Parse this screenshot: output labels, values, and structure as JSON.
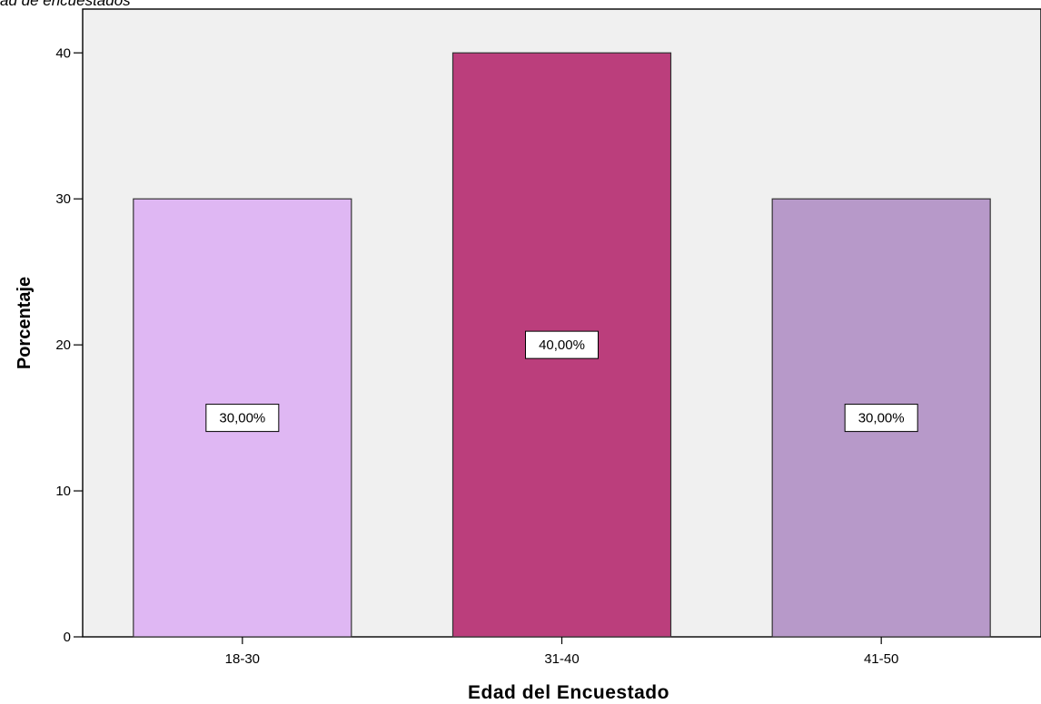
{
  "caption": "ad de encuestados",
  "chart_data": {
    "type": "bar",
    "xlabel": "Edad del Encuestado",
    "ylabel": "Porcentaje",
    "categories": [
      "18-30",
      "31-40",
      "41-50"
    ],
    "values": [
      30,
      40,
      30
    ],
    "data_labels": [
      "30,00%",
      "40,00%",
      "30,00%"
    ],
    "bar_colors": [
      "#dfb7f3",
      "#bb3e7c",
      "#b799c9"
    ],
    "plot_background": "#f0f0f0",
    "ylim": [
      0,
      43
    ],
    "yticks": [
      0,
      10,
      20,
      30,
      40
    ],
    "ytick_labels": [
      "0",
      "10",
      "20",
      "30",
      "40"
    ],
    "grid": false,
    "legend": "none"
  }
}
